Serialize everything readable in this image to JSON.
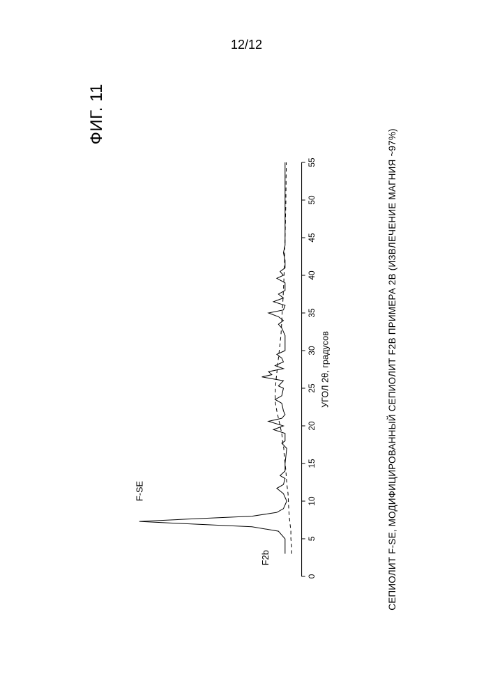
{
  "page_number": "12/12",
  "figure": {
    "title": "ФИГ. 11",
    "caption": "СЕПИОЛИТ F-SE, МОДИФИЦИРОВАННЫЙ СЕПИОЛИТ F2B ПРИМЕРА 2B (ИЗВЛЕЧЕНИЕ МАГНИЯ ~97%)",
    "chart": {
      "type": "line",
      "x_axis": {
        "title": "УГОЛ 2θ, градусов",
        "min": 0,
        "max": 55,
        "tick_step": 5,
        "ticks": [
          0,
          5,
          10,
          15,
          20,
          25,
          30,
          35,
          40,
          45,
          50,
          55
        ]
      },
      "y_axis": {
        "min": 0,
        "max": 100,
        "show_ticks": false
      },
      "background_color": "#ffffff",
      "line_color": "#000000",
      "series": [
        {
          "name": "F-SE",
          "label": "F-SE",
          "label_pos": {
            "x": 10,
            "y": 96
          },
          "style": "solid",
          "points": [
            [
              3,
              10
            ],
            [
              5,
              10
            ],
            [
              6,
              14
            ],
            [
              6.6,
              30
            ],
            [
              7,
              70
            ],
            [
              7.3,
              98
            ],
            [
              7.6,
              70
            ],
            [
              8,
              30
            ],
            [
              8.5,
              15
            ],
            [
              9,
              11
            ],
            [
              10,
              9
            ],
            [
              11,
              11
            ],
            [
              11.7,
              15
            ],
            [
              12.2,
              11
            ],
            [
              13,
              10
            ],
            [
              13.4,
              13
            ],
            [
              14,
              10
            ],
            [
              15,
              10
            ],
            [
              17,
              9
            ],
            [
              17.7,
              12
            ],
            [
              18,
              10
            ],
            [
              19,
              10
            ],
            [
              19.5,
              17
            ],
            [
              20,
              11
            ],
            [
              20.6,
              20
            ],
            [
              21,
              12
            ],
            [
              21.5,
              10
            ],
            [
              22,
              11
            ],
            [
              23,
              12
            ],
            [
              23.5,
              16
            ],
            [
              24,
              12
            ],
            [
              25,
              11
            ],
            [
              25.3,
              14
            ],
            [
              26,
              11
            ],
            [
              26.5,
              24
            ],
            [
              26.8,
              18
            ],
            [
              27.2,
              20
            ],
            [
              27.6,
              11
            ],
            [
              28,
              16
            ],
            [
              28.5,
              11
            ],
            [
              29,
              12
            ],
            [
              29.5,
              15
            ],
            [
              30,
              10
            ],
            [
              31,
              10
            ],
            [
              32,
              10
            ],
            [
              33,
              12
            ],
            [
              33.5,
              14
            ],
            [
              34,
              11
            ],
            [
              34.5,
              14
            ],
            [
              35,
              20
            ],
            [
              35.4,
              11
            ],
            [
              36,
              10
            ],
            [
              36.5,
              17
            ],
            [
              37,
              11
            ],
            [
              37.5,
              14
            ],
            [
              38,
              10
            ],
            [
              39,
              10
            ],
            [
              39.6,
              15
            ],
            [
              40,
              11
            ],
            [
              40.5,
              13
            ],
            [
              41,
              10
            ],
            [
              42,
              10
            ],
            [
              43,
              11
            ],
            [
              44,
              10
            ],
            [
              45,
              10
            ],
            [
              46,
              10
            ],
            [
              47,
              10
            ],
            [
              48,
              10
            ],
            [
              49,
              10
            ],
            [
              50,
              10
            ],
            [
              51,
              10
            ],
            [
              52,
              10
            ],
            [
              53,
              10
            ],
            [
              54,
              10
            ],
            [
              55,
              10
            ]
          ]
        },
        {
          "name": "F2b",
          "label": "F2b",
          "label_pos": {
            "x": 3.5,
            "y": 20
          },
          "style": "dashed",
          "points": [
            [
              3,
              6
            ],
            [
              4,
              6
            ],
            [
              5,
              6.5
            ],
            [
              6,
              6.5
            ],
            [
              7,
              7
            ],
            [
              8,
              7.5
            ],
            [
              9,
              7.8
            ],
            [
              10,
              8
            ],
            [
              11,
              8.2
            ],
            [
              12,
              8.8
            ],
            [
              13,
              9.2
            ],
            [
              14,
              9.5
            ],
            [
              15,
              10
            ],
            [
              16,
              10.5
            ],
            [
              17,
              10.8
            ],
            [
              18,
              11.5
            ],
            [
              19,
              12
            ],
            [
              20,
              13
            ],
            [
              21,
              14
            ],
            [
              22,
              15
            ],
            [
              23,
              15.8
            ],
            [
              24,
              16
            ],
            [
              25,
              15.8
            ],
            [
              26,
              15.5
            ],
            [
              27,
              15
            ],
            [
              28,
              14.5
            ],
            [
              29,
              14
            ],
            [
              30,
              13.5
            ],
            [
              31,
              13
            ],
            [
              32,
              12.5
            ],
            [
              33,
              12.2
            ],
            [
              34,
              12
            ],
            [
              35,
              11.8
            ],
            [
              36,
              11.5
            ],
            [
              37,
              11.2
            ],
            [
              38,
              11
            ],
            [
              39,
              10.8
            ],
            [
              40,
              10.6
            ],
            [
              41,
              10.5
            ],
            [
              42,
              10.3
            ],
            [
              43,
              10.2
            ],
            [
              44,
              10.1
            ],
            [
              45,
              10
            ],
            [
              46,
              9.9
            ],
            [
              47,
              9.8
            ],
            [
              48,
              9.7
            ],
            [
              49,
              9.6
            ],
            [
              50,
              9.5
            ],
            [
              51,
              9.5
            ],
            [
              52,
              9.4
            ],
            [
              53,
              9.4
            ],
            [
              54,
              9.3
            ],
            [
              55,
              9.3
            ]
          ]
        }
      ]
    }
  }
}
